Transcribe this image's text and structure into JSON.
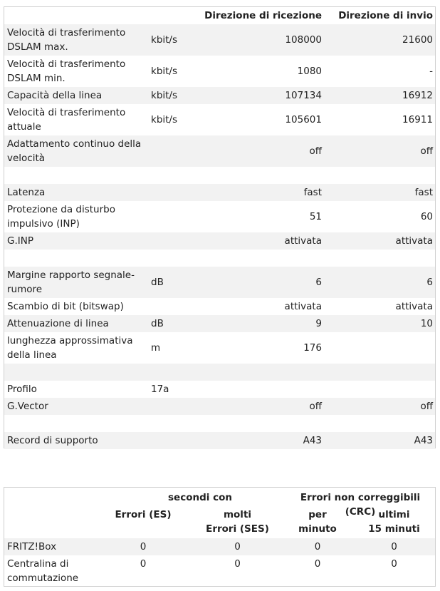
{
  "dsl_table": {
    "headers": {
      "rx": "Direzione di ricezione",
      "tx": "Direzione di invio"
    },
    "rows": [
      {
        "label": "Velocità di trasferimento DSLAM max.",
        "unit": "kbit/s",
        "rx": "108000",
        "tx": "21600"
      },
      {
        "label": "Velocità di trasferimento DSLAM min.",
        "unit": "kbit/s",
        "rx": "1080",
        "tx": "-"
      },
      {
        "label": "Capacità della linea",
        "unit": "kbit/s",
        "rx": "107134",
        "tx": "16912"
      },
      {
        "label": "Velocità di trasferimento attuale",
        "unit": "kbit/s",
        "rx": "105601",
        "tx": "16911"
      },
      {
        "label": "Adattamento continuo della velocità",
        "unit": "",
        "rx": "off",
        "tx": "off"
      },
      {
        "label": "",
        "unit": "",
        "rx": "",
        "tx": ""
      },
      {
        "label": "Latenza",
        "unit": "",
        "rx": "fast",
        "tx": "fast"
      },
      {
        "label": "Protezione da disturbo impulsivo (INP)",
        "unit": "",
        "rx": "51",
        "tx": "60"
      },
      {
        "label": "G.INP",
        "unit": "",
        "rx": "attivata",
        "tx": "attivata"
      },
      {
        "label": "",
        "unit": "",
        "rx": "",
        "tx": ""
      },
      {
        "label": "Margine rapporto segnale-rumore",
        "unit": "dB",
        "rx": "6",
        "tx": "6"
      },
      {
        "label": "Scambio di bit (bitswap)",
        "unit": "",
        "rx": "attivata",
        "tx": "attivata"
      },
      {
        "label": "Attenuazione di linea",
        "unit": "dB",
        "rx": "9",
        "tx": "10"
      },
      {
        "label": "lunghezza approssimativa della linea",
        "unit": "m",
        "rx": "176",
        "tx": ""
      },
      {
        "label": "",
        "unit": "",
        "rx": "",
        "tx": ""
      },
      {
        "label": "Profilo",
        "unit": "17a",
        "rx": "",
        "tx": ""
      },
      {
        "label": "G.Vector",
        "unit": "",
        "rx": "off",
        "tx": "off"
      },
      {
        "label": "",
        "unit": "",
        "rx": "",
        "tx": ""
      },
      {
        "label": "Record di supporto",
        "unit": "",
        "rx": "A43",
        "tx": "A43"
      }
    ]
  },
  "error_table": {
    "group_seconds": "secondi con",
    "group_crc": "Errori non correggibili (CRC)",
    "col_es": "Errori (ES)",
    "col_ses_1": "molti",
    "col_ses_2": "Errori (SES)",
    "col_min_1": "per",
    "col_min_2": "minuto",
    "col_15_1": "ultimi",
    "col_15_2": "15 minuti",
    "rows": [
      {
        "label_1": "FRITZ!Box",
        "label_2": "",
        "es": "0",
        "ses": "0",
        "per_min": "0",
        "last15": "0"
      },
      {
        "label_1": "Centralina di",
        "label_2": "commutazione",
        "es": "0",
        "ses": "0",
        "per_min": "0",
        "last15": "0"
      }
    ]
  }
}
